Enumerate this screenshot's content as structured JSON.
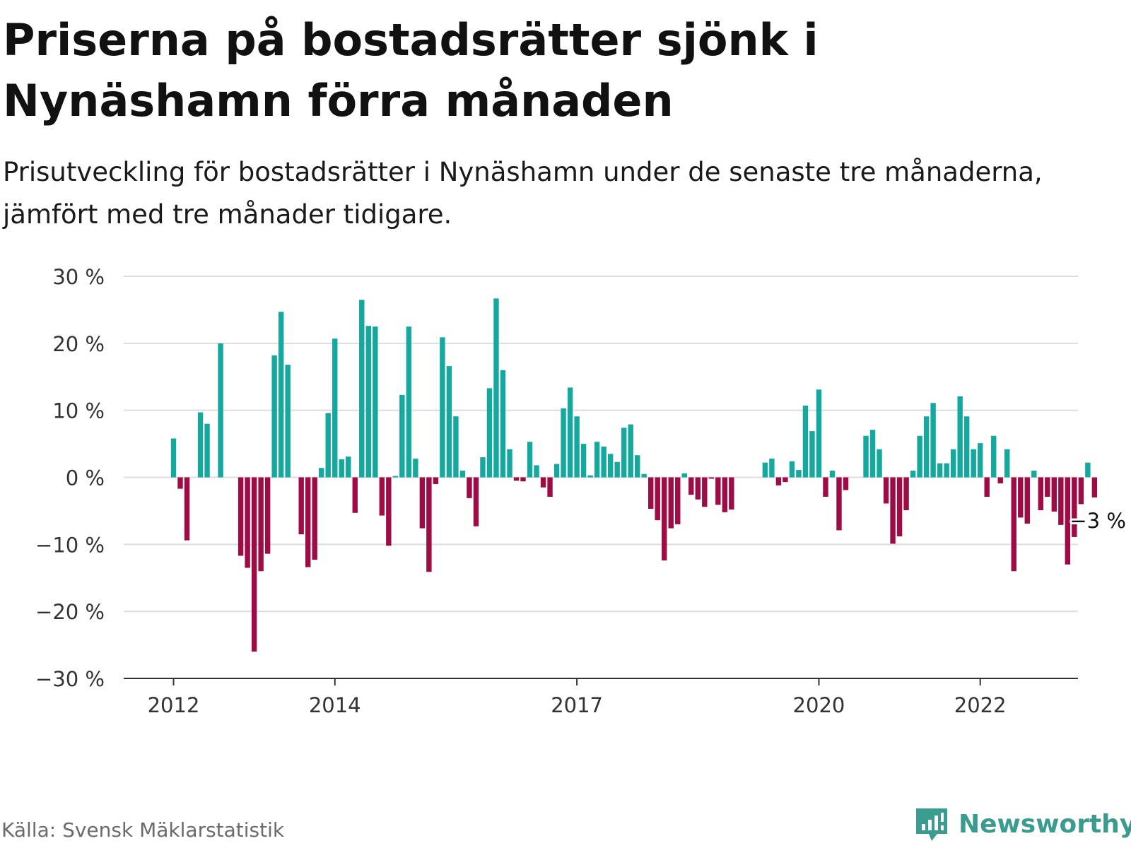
{
  "title": "Priserna på bostadsrätter sjönk i Nynäshamn förra månaden",
  "subtitle": "Prisutveckling för bostadsrätter i Nynäshamn under de senaste tre månaderna, jämfört med tre månader tidigare.",
  "source": "Källa: Svensk Mäklarstatistik",
  "brand": "Newsworthy",
  "colors": {
    "positive": "#14a89e",
    "negative": "#9e0b45",
    "grid": "#dddddd",
    "axis": "#333333",
    "brand": "#3a9c8f"
  },
  "chart_data": {
    "type": "bar",
    "unit": "%",
    "x_start": "2012-01",
    "x_step": "month",
    "xticks": [
      {
        "label": "2012",
        "date": "2012-01"
      },
      {
        "label": "2014",
        "date": "2014-01"
      },
      {
        "label": "2017",
        "date": "2017-01"
      },
      {
        "label": "2020",
        "date": "2020-01"
      },
      {
        "label": "2022",
        "date": "2022-01"
      }
    ],
    "yticks": [
      {
        "value": 30,
        "label": "30 %"
      },
      {
        "value": 20,
        "label": "20 %"
      },
      {
        "value": 10,
        "label": "10 %"
      },
      {
        "value": 0,
        "label": "0 %"
      },
      {
        "value": -10,
        "label": "−10 %"
      },
      {
        "value": -20,
        "label": "−20 %"
      },
      {
        "value": -30,
        "label": "−30 %"
      }
    ],
    "ylim": [
      -30,
      30
    ],
    "grid": true,
    "last_value_label": "−3 %",
    "values": [
      5.8,
      -1.7,
      -9.4,
      null,
      9.7,
      8.0,
      null,
      20.0,
      null,
      null,
      -11.7,
      -13.5,
      -26.0,
      -14.0,
      -11.4,
      18.2,
      24.7,
      16.8,
      null,
      -8.5,
      -13.4,
      -12.3,
      1.4,
      9.6,
      20.7,
      2.7,
      3.1,
      -5.3,
      26.5,
      22.6,
      22.5,
      -5.7,
      -10.2,
      0.2,
      12.3,
      22.5,
      2.8,
      -7.6,
      -14.1,
      -1.0,
      20.9,
      16.6,
      9.1,
      1.0,
      -3.1,
      -7.3,
      3.0,
      13.3,
      26.7,
      16.0,
      4.2,
      -0.5,
      -0.6,
      5.3,
      1.8,
      -1.5,
      -2.9,
      2.0,
      10.3,
      13.4,
      9.1,
      5.0,
      0.3,
      5.3,
      4.6,
      3.5,
      2.3,
      7.4,
      7.9,
      3.3,
      0.5,
      -4.7,
      -6.4,
      -12.4,
      -7.6,
      -7.0,
      0.6,
      -2.6,
      -3.3,
      -4.4,
      -0.2,
      -4.1,
      -5.2,
      -4.8,
      null,
      null,
      null,
      null,
      2.2,
      2.8,
      -1.2,
      -0.7,
      2.4,
      1.1,
      10.7,
      6.9,
      13.1,
      -2.9,
      1.0,
      -7.9,
      -1.9,
      null,
      null,
      6.2,
      7.1,
      4.2,
      -3.9,
      -9.9,
      -8.8,
      -4.9,
      1.0,
      6.2,
      9.1,
      11.1,
      2.1,
      2.1,
      4.2,
      12.1,
      9.1,
      4.2,
      5.1,
      -2.9,
      6.2,
      -0.9,
      4.2,
      -14.0,
      -6.0,
      -6.9,
      1.0,
      -4.9,
      -2.9,
      -5.1,
      -7.1,
      -13.0,
      -8.9,
      -4.0,
      2.2,
      -3.0
    ]
  }
}
